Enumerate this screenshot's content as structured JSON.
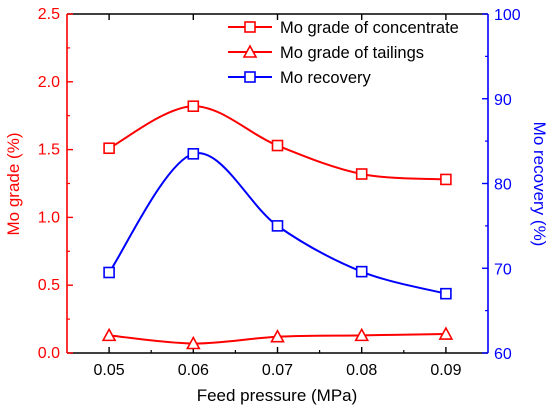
{
  "chart_data": {
    "type": "line",
    "xlabel": "Feed pressure (MPa)",
    "ylabel_left": "Mo grade (%)",
    "ylabel_right": "Mo recovery (%)",
    "x": [
      0.05,
      0.06,
      0.07,
      0.08,
      0.09
    ],
    "x_ticks": [
      "0.05",
      "0.06",
      "0.07",
      "0.08",
      "0.09"
    ],
    "xlim": [
      0.045,
      0.095
    ],
    "ylim_left": [
      0.0,
      2.5
    ],
    "ylim_right": [
      60,
      100
    ],
    "y_ticks_left": [
      "0.0",
      "0.5",
      "1.0",
      "1.5",
      "2.0",
      "2.5"
    ],
    "y_ticks_right": [
      "60",
      "70",
      "80",
      "90",
      "100"
    ],
    "grid": false,
    "legend_position": "top-right",
    "colors": {
      "left_axis": "#ff0000",
      "right_axis": "#0000ff",
      "frame": "#000000"
    },
    "series": [
      {
        "name": "Mo grade of concentrate",
        "axis": "left",
        "marker": "square",
        "color": "#ff0000",
        "values": [
          1.51,
          1.82,
          1.53,
          1.32,
          1.28
        ]
      },
      {
        "name": "Mo grade of tailings",
        "axis": "left",
        "marker": "triangle",
        "color": "#ff0000",
        "values": [
          0.13,
          0.07,
          0.12,
          0.13,
          0.14
        ]
      },
      {
        "name": "Mo recovery",
        "axis": "right",
        "marker": "square",
        "color": "#0000ff",
        "values": [
          69.5,
          83.5,
          75.0,
          69.6,
          67.0
        ]
      }
    ]
  }
}
